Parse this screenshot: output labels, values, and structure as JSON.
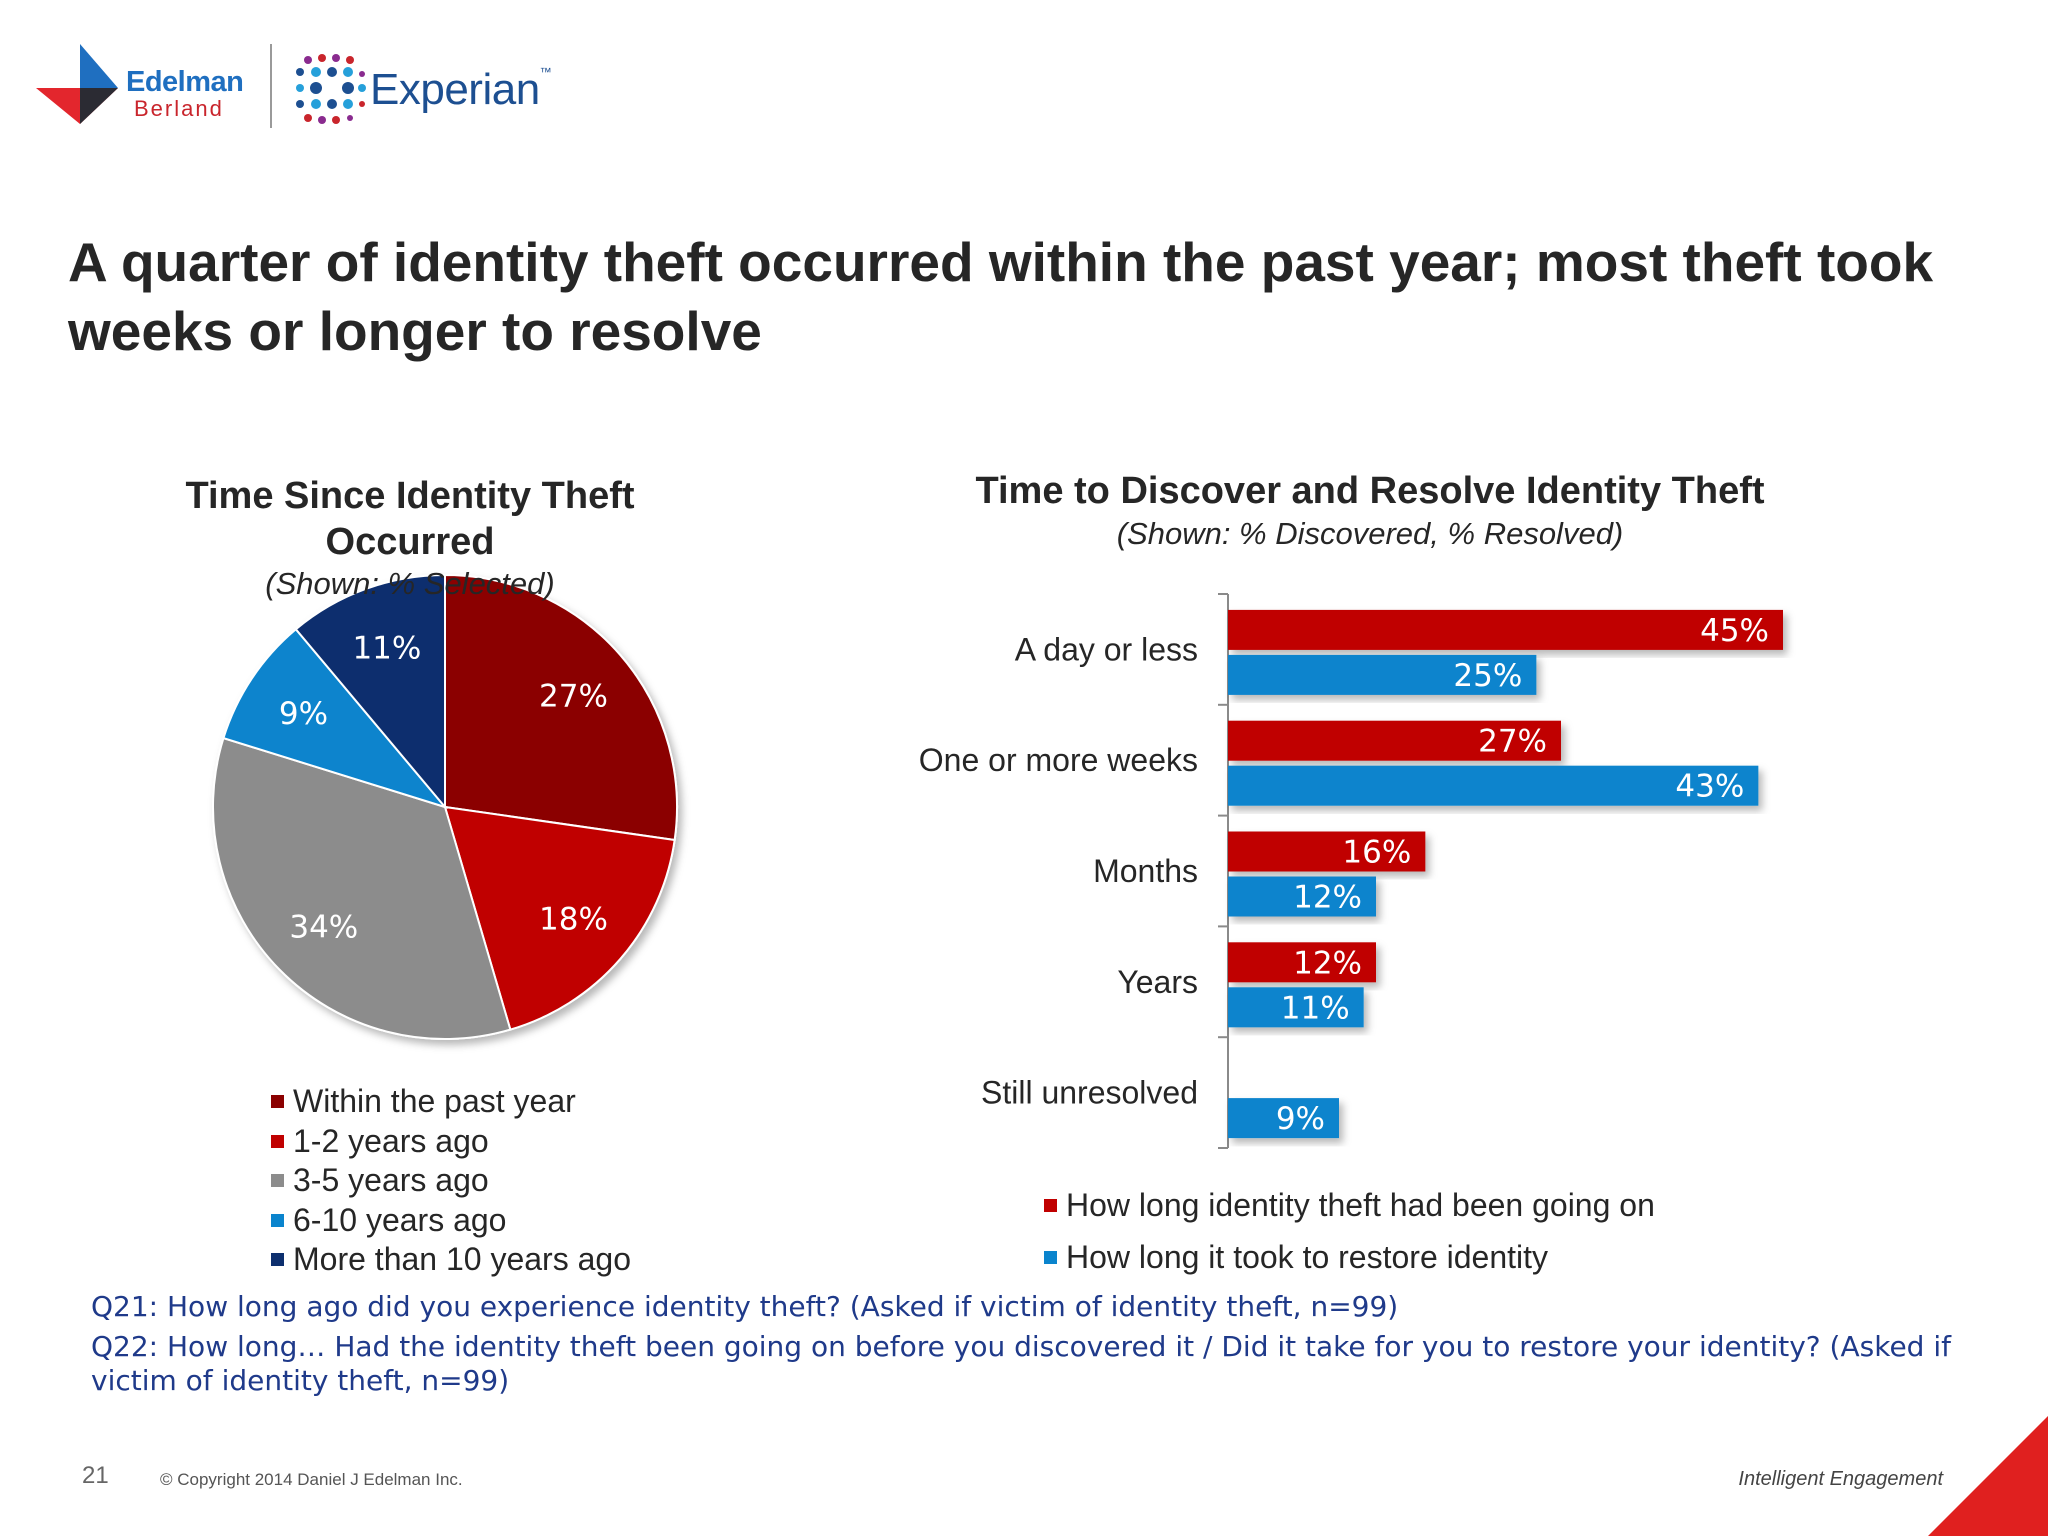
{
  "logos": {
    "edelman": "Edelman",
    "berland": "Berland",
    "experian": "Experian",
    "experian_tm": "™"
  },
  "slide_title": "A quarter of identity theft occurred within the past year; most theft took weeks or longer to resolve",
  "chart_data": [
    {
      "type": "pie",
      "title": "Time Since Identity Theft Occurred",
      "subtitle": "(Shown: % Selected)",
      "legend_position": "bottom",
      "categories": [
        "Within the past year",
        "1-2 years ago",
        "3-5 years ago",
        "6-10 years ago",
        "More than 10 years ago"
      ],
      "values": [
        27,
        18,
        34,
        9,
        11
      ],
      "labels": [
        "27%",
        "18%",
        "34%",
        "9%",
        "11%"
      ],
      "colors": [
        "#8b0000",
        "#c00000",
        "#8c8c8c",
        "#0a84cd",
        "#0d2f6e"
      ]
    },
    {
      "type": "bar",
      "orientation": "horizontal",
      "title": "Time to Discover and Resolve Identity Theft",
      "subtitle": "(Shown: % Discovered, % Resolved)",
      "legend_position": "bottom",
      "categories": [
        "A day or less",
        "One or more weeks",
        "Months",
        "Years",
        "Still unresolved"
      ],
      "xlim": [
        0,
        50
      ],
      "series": [
        {
          "name": "How long identity theft had been going on",
          "color": "#c00000",
          "values": [
            45,
            27,
            16,
            12,
            null
          ],
          "labels": [
            "45%",
            "27%",
            "16%",
            "12%",
            ""
          ]
        },
        {
          "name": "How long it took to restore identity",
          "color": "#0a84cd",
          "values": [
            25,
            43,
            12,
            11,
            9
          ],
          "labels": [
            "25%",
            "43%",
            "12%",
            "11%",
            "9%"
          ]
        }
      ]
    }
  ],
  "footnotes": {
    "q21": "Q21: How long ago did you experience identity theft? (Asked if victim of identity theft, n=99)",
    "q22": "Q22: How long… Had the identity theft been going on before you discovered it / Did it take for you to restore your identity? (Asked if victim of identity theft, n=99)"
  },
  "footer": {
    "page_number": "21",
    "copyright": "© Copyright 2014 Daniel J Edelman Inc.",
    "tagline": "Intelligent Engagement"
  },
  "colors": {
    "accent_red": "#c9252c",
    "edelman_blue": "#1f6fc0",
    "experian_blue": "#1d4f91",
    "footnote_blue": "#1f3a8a"
  }
}
